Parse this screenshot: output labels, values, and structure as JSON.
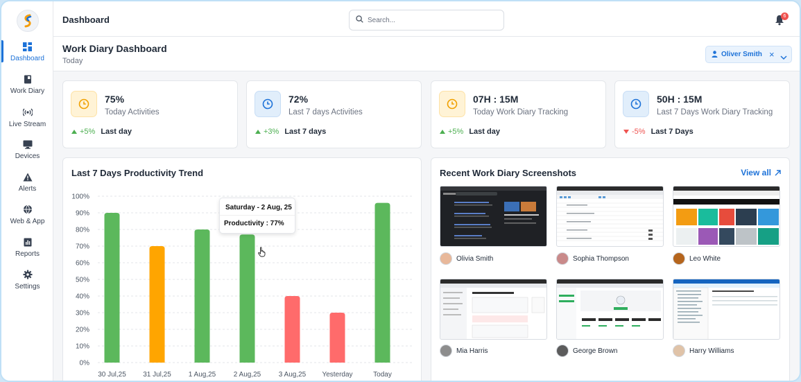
{
  "topbar": {
    "title": "Dashboard",
    "search_placeholder": "Search...",
    "notification_count": "6"
  },
  "sidebar": {
    "items": [
      {
        "label": "Dashboard",
        "icon": "grid-icon",
        "active": true
      },
      {
        "label": "Work Diary",
        "icon": "book-icon"
      },
      {
        "label": "Live Stream",
        "icon": "broadcast-icon"
      },
      {
        "label": "Devices",
        "icon": "monitor-icon"
      },
      {
        "label": "Alerts",
        "icon": "warning-icon"
      },
      {
        "label": "Web & App",
        "icon": "globe-icon"
      },
      {
        "label": "Reports",
        "icon": "report-icon"
      },
      {
        "label": "Settings",
        "icon": "gear-icon"
      }
    ]
  },
  "header": {
    "title": "Work Diary Dashboard",
    "subtitle": "Today",
    "user_filter": "Oliver Smith"
  },
  "stats": [
    {
      "value": "75%",
      "label": "Today Activities",
      "change": "+5%",
      "direction": "up",
      "period": "Last day",
      "icon_color": "orange"
    },
    {
      "value": "72%",
      "label": "Last 7 days Activities",
      "change": "+3%",
      "direction": "up",
      "period": "Last 7 days",
      "icon_color": "blue"
    },
    {
      "value": "07H : 15M",
      "label": "Today Work Diary Tracking",
      "change": "+5%",
      "direction": "up",
      "period": "Last day",
      "icon_color": "orange"
    },
    {
      "value": "50H : 15M",
      "label": "Last 7 Days Work Diary Tracking",
      "change": "-5%",
      "direction": "down",
      "period": "Last 7 Days",
      "icon_color": "blue"
    }
  ],
  "chart_panel": {
    "title": "Last 7 Days Productivity Trend",
    "tooltip_title": "Saturday - 2 Aug, 25",
    "tooltip_value": "Productivity : 77%"
  },
  "chart_data": {
    "type": "bar",
    "title": "Last 7 Days Productivity Trend",
    "categories": [
      "30 Jul,25",
      "31 Jul,25",
      "1 Aug,25",
      "2 Aug,25",
      "3 Aug,25",
      "Yesterday",
      "Today"
    ],
    "values": [
      90,
      70,
      80,
      77,
      40,
      30,
      96
    ],
    "bar_colors": [
      "#5cb85c",
      "#ffa500",
      "#5cb85c",
      "#5cb85c",
      "#ff6b6b",
      "#ff6b6b",
      "#5cb85c"
    ],
    "ylim": [
      0,
      100
    ],
    "yticks": [
      "0%",
      "10%",
      "20%",
      "30%",
      "40%",
      "50%",
      "60%",
      "70%",
      "80%",
      "90%",
      "100%"
    ],
    "grid": true
  },
  "screenshots": {
    "title": "Recent Work Diary Screenshots",
    "view_all": "View all",
    "items": [
      {
        "user": "Olivia Smith",
        "theme": "dark"
      },
      {
        "user": "Sophia Thompson",
        "theme": "sheet"
      },
      {
        "user": "Leo White",
        "theme": "media"
      },
      {
        "user": "Mia Harris",
        "theme": "form"
      },
      {
        "user": "George Brown",
        "theme": "dashboard"
      },
      {
        "user": "Harry Williams",
        "theme": "explorer"
      }
    ]
  },
  "colors": {
    "accent": "#1d72d8",
    "up": "#4caf50",
    "down": "#ef5350",
    "green_bar": "#5cb85c",
    "orange_bar": "#ffa500",
    "red_bar": "#ff6b6b"
  }
}
